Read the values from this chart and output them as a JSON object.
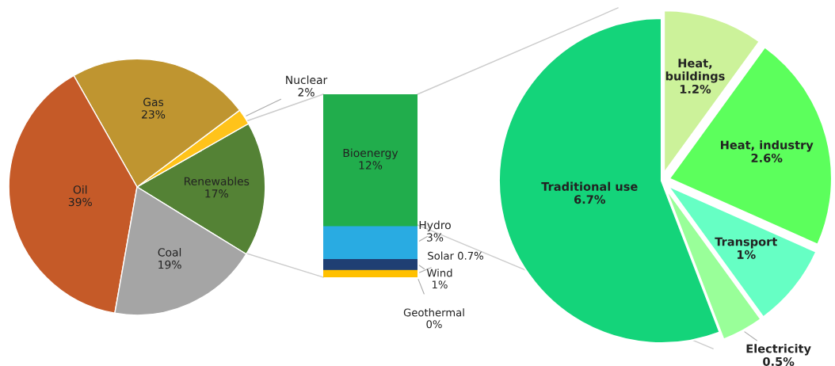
{
  "chart_data": [
    {
      "type": "pie",
      "categories": [
        "Renewables",
        "Nuclear",
        "Gas",
        "Oil",
        "Coal"
      ],
      "values": [
        17,
        2,
        23,
        39,
        19
      ],
      "value_labels": [
        "17%",
        "2%",
        "23%",
        "39%",
        "19%"
      ],
      "colors": [
        "#548235",
        "#ffc31a",
        "#bf9530",
        "#c55a28",
        "#a5a5a5"
      ]
    },
    {
      "type": "bar",
      "stacked": true,
      "categories": [
        null
      ],
      "annotations": [
        "Geothermal\n0%"
      ],
      "series": [
        {
          "name": "Solar",
          "color": "#ffc000",
          "values": [
            0.7
          ],
          "value_labels": [
            "0.7%"
          ]
        },
        {
          "name": "Wind",
          "color": "#1f3f73",
          "values": [
            1
          ],
          "value_labels": [
            "1%"
          ]
        },
        {
          "name": "Hydro",
          "color": "#29abe2",
          "values": [
            3
          ],
          "value_labels": [
            "3%"
          ]
        },
        {
          "name": "Bioenergy",
          "color": "#21ad4c",
          "values": [
            12
          ],
          "value_labels": [
            "12%"
          ]
        }
      ]
    },
    {
      "type": "pie",
      "categories": [
        "Heat, buildings",
        "Heat, industry",
        "Transport",
        "Electricity",
        "Traditional use"
      ],
      "values": [
        1.2,
        2.6,
        1,
        0.5,
        6.7
      ],
      "value_labels": [
        "1.2%",
        "2.6%",
        "1%",
        "0.5%",
        "6.7%"
      ],
      "colors": [
        "#ccf29a",
        "#5cff5c",
        "#66ffc4",
        "#99ff99",
        "#14d47a"
      ]
    }
  ]
}
